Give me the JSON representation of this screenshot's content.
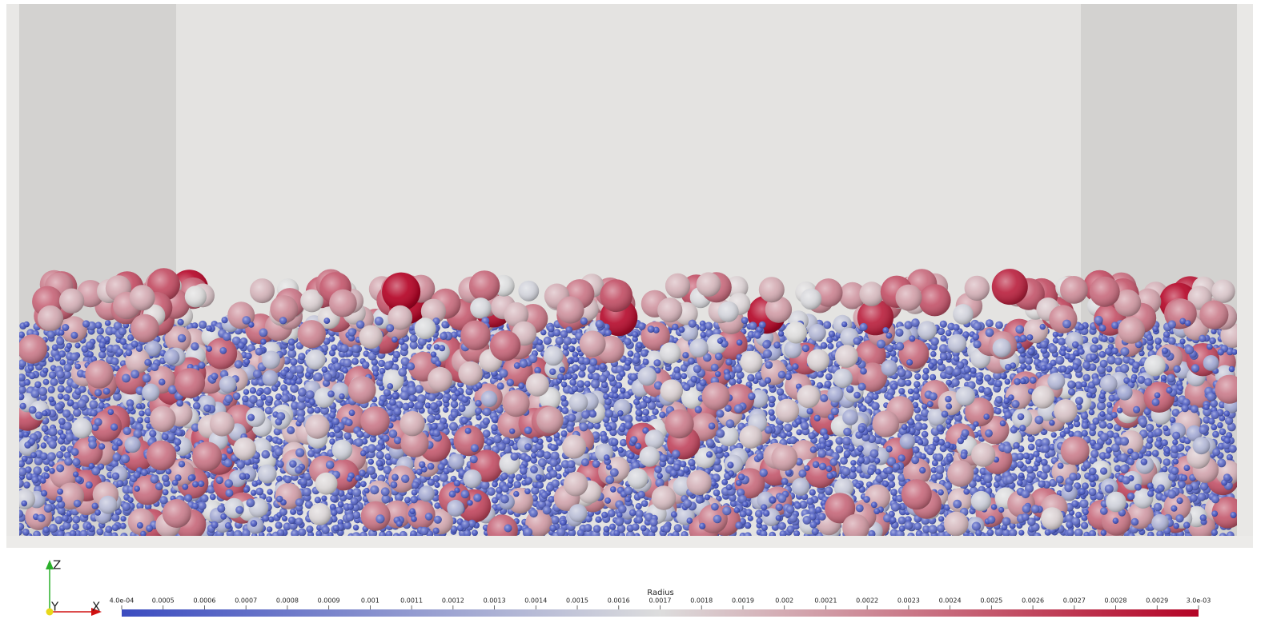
{
  "colorbar": {
    "title": "Radius",
    "range": [
      0.0004,
      0.003
    ],
    "colors": [
      "#3b4cc0",
      "#dddddd",
      "#b40426"
    ],
    "ticks": [
      {
        "value": 0.0004,
        "label": "4.0e-04"
      },
      0.0005,
      0.0006,
      0.0007,
      0.0008,
      0.0009,
      0.001,
      0.0011,
      0.0012,
      0.0013,
      0.0014,
      0.0015,
      0.0016,
      0.0017,
      0.0018,
      0.0019,
      0.002,
      0.0021,
      0.0022,
      0.0023,
      0.0024,
      0.0025,
      0.0026,
      0.0027,
      0.0028,
      0.0029,
      {
        "value": 0.003,
        "label": "3.0e-03"
      }
    ]
  },
  "axes_triad": {
    "z": "Z",
    "y": "Y",
    "x": "X"
  }
}
